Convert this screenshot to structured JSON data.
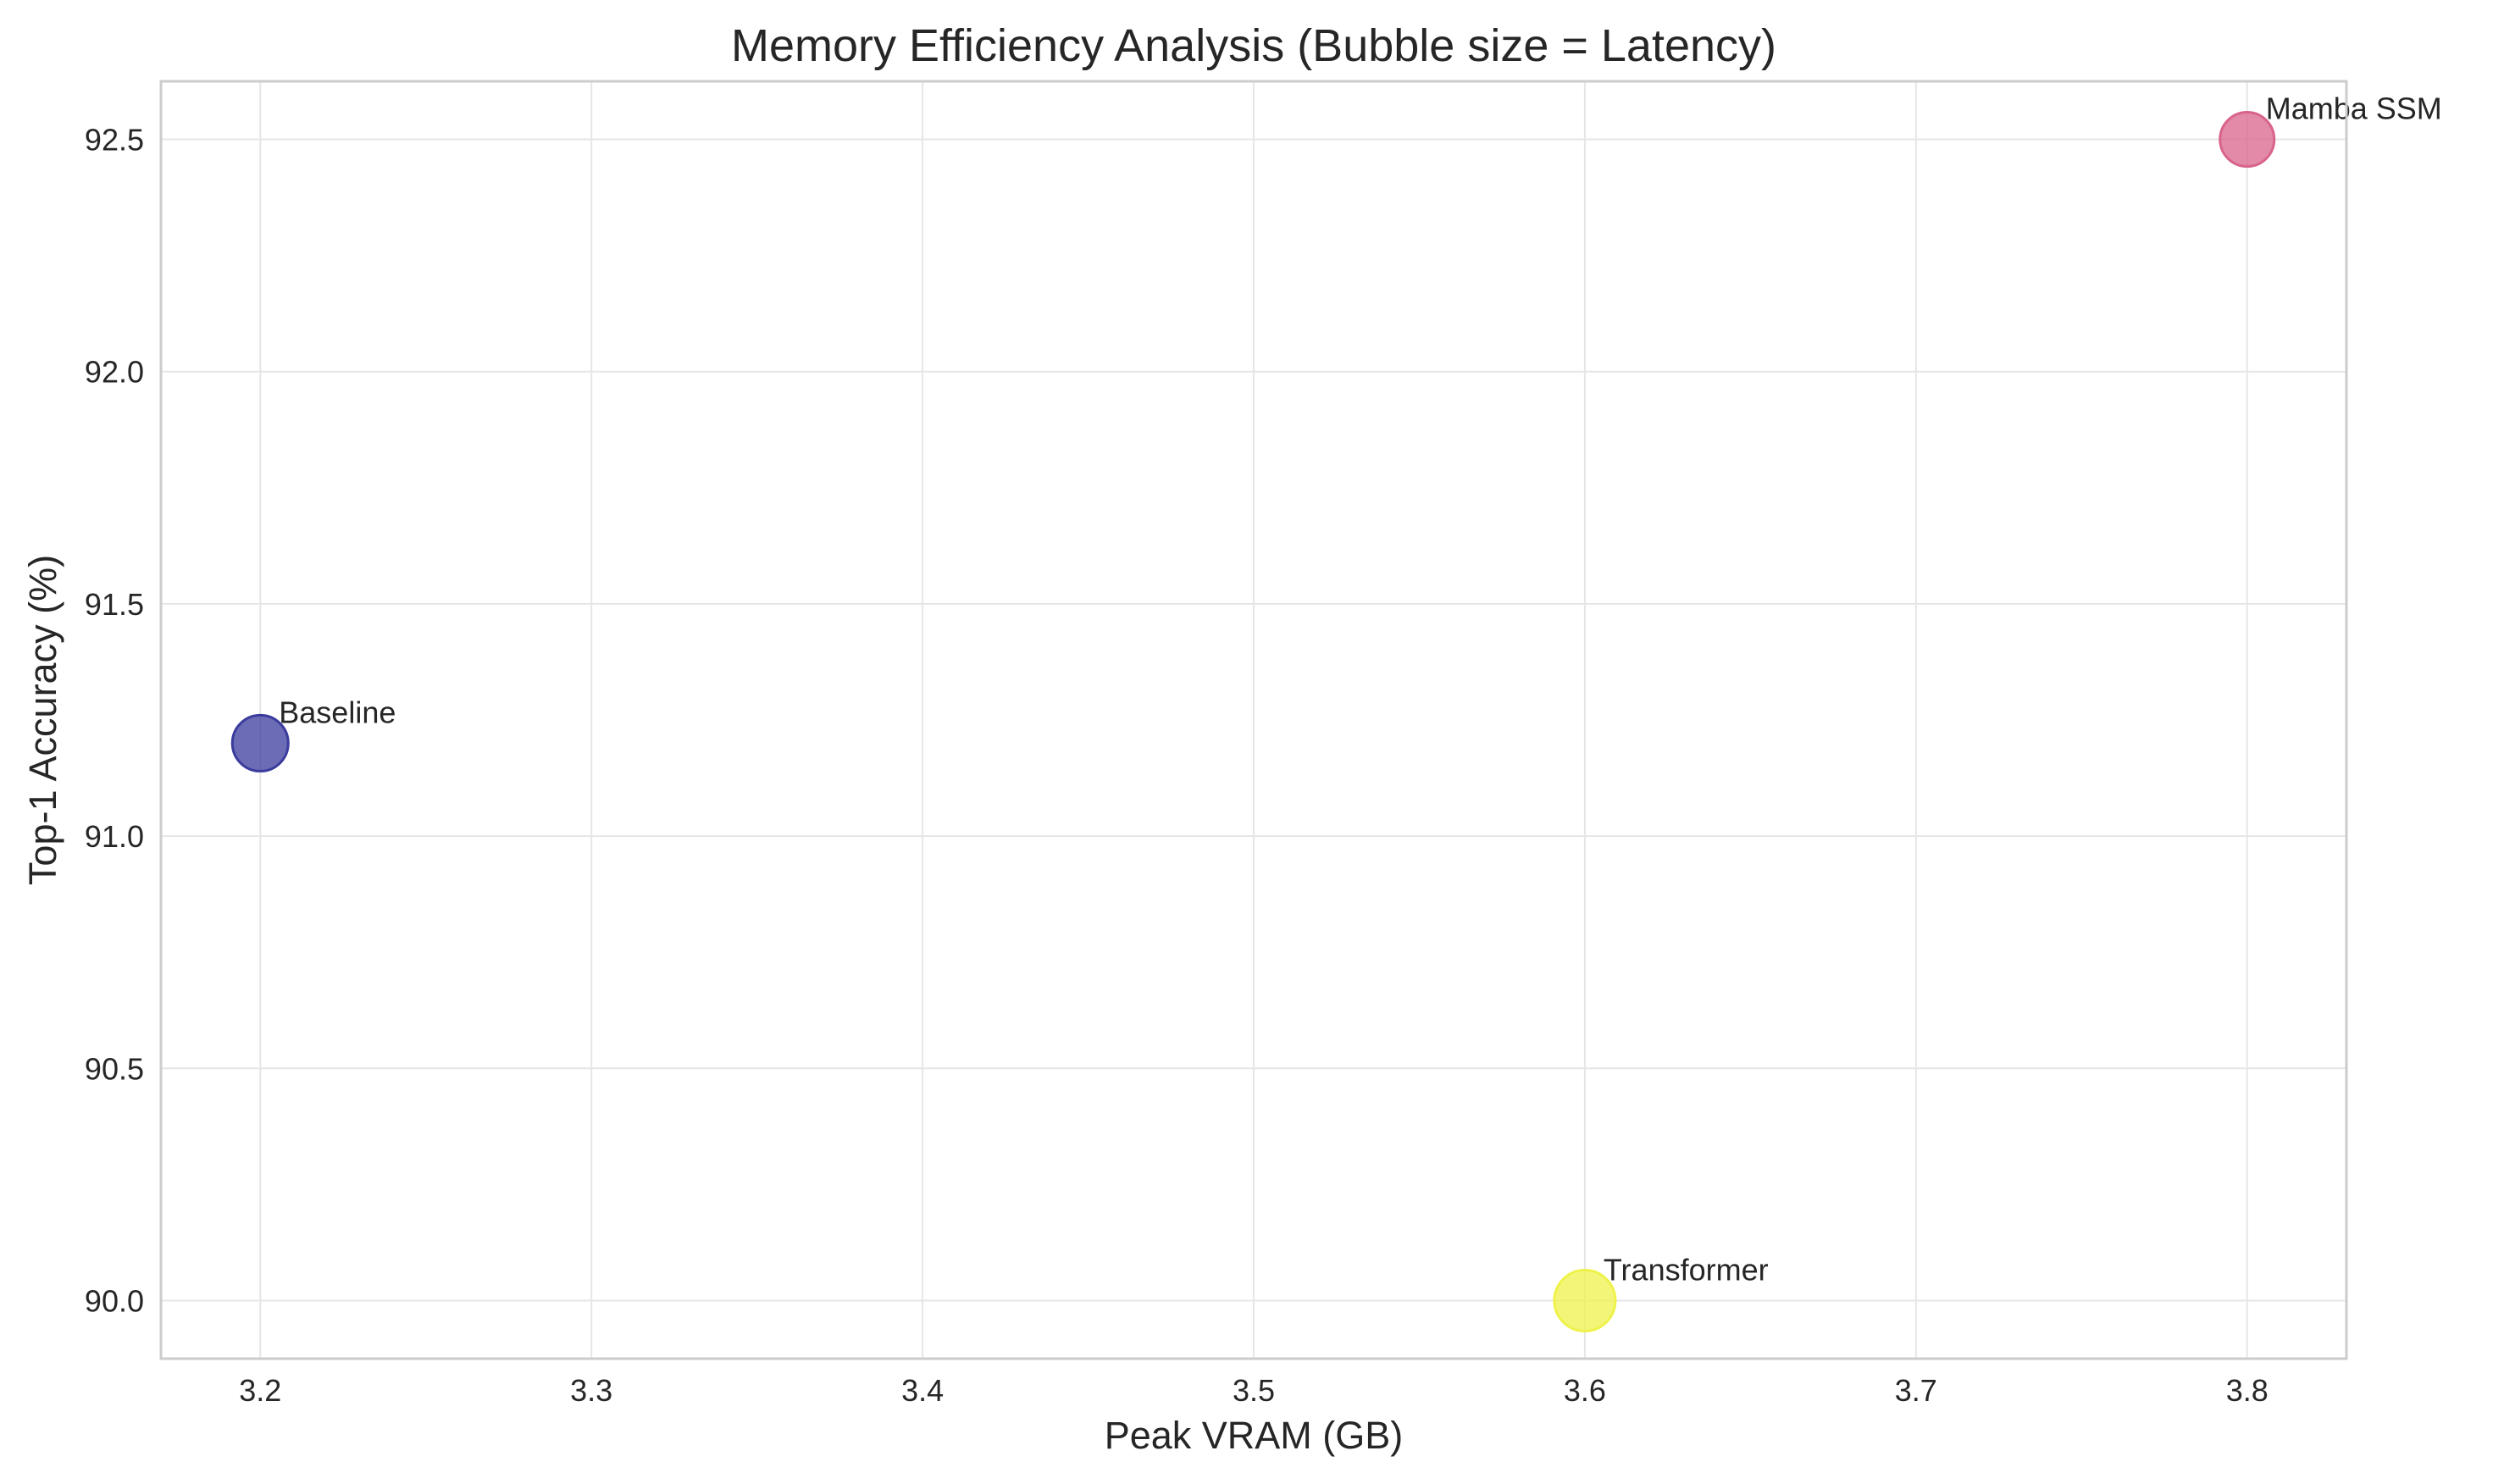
{
  "chart_data": {
    "type": "scatter",
    "title": "Memory Efficiency Analysis (Bubble size = Latency)",
    "xlabel": "Peak VRAM (GB)",
    "ylabel": "Top-1 Accuracy (%)",
    "xlim": [
      3.17,
      3.83
    ],
    "ylim": [
      89.875,
      92.625
    ],
    "xticks": [
      "3.2",
      "3.3",
      "3.4",
      "3.5",
      "3.6",
      "3.7",
      "3.8"
    ],
    "yticks": [
      "90.0",
      "90.5",
      "91.0",
      "91.5",
      "92.0",
      "92.5"
    ],
    "grid": true,
    "points": [
      {
        "label": "Baseline",
        "x": 3.2,
        "y": 91.2,
        "color": "#3b3b9e"
      },
      {
        "label": "Transformer",
        "x": 3.6,
        "y": 90.0,
        "color": "#eef24a"
      },
      {
        "label": "Mamba SSM",
        "x": 3.8,
        "y": 92.5,
        "color": "#d9638c"
      }
    ]
  }
}
